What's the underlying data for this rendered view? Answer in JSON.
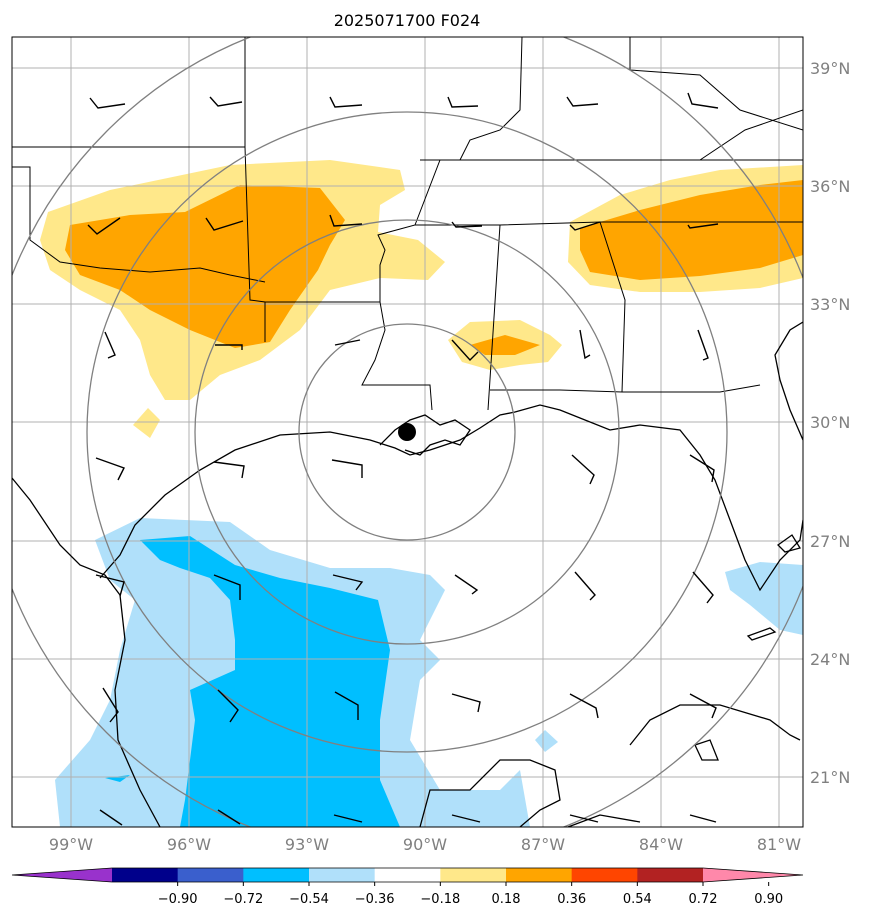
{
  "title": "2025071700 F024",
  "map": {
    "lon_range": [
      -101,
      -80.2
    ],
    "lat_range": [
      19.7,
      39.8
    ],
    "lon_ticks": [
      {
        "value": -99,
        "label": "99°W"
      },
      {
        "value": -96,
        "label": "96°W"
      },
      {
        "value": -93,
        "label": "93°W"
      },
      {
        "value": -90,
        "label": "90°W"
      },
      {
        "value": -87,
        "label": "87°W"
      },
      {
        "value": -84,
        "label": "84°W"
      },
      {
        "value": -81,
        "label": "81°W"
      }
    ],
    "lat_ticks": [
      {
        "value": 21,
        "label": "21°N"
      },
      {
        "value": 24,
        "label": "24°N"
      },
      {
        "value": 27,
        "label": "27°N"
      },
      {
        "value": 30,
        "label": "30°N"
      },
      {
        "value": 33,
        "label": "33°N"
      },
      {
        "value": 36,
        "label": "36°N"
      },
      {
        "value": 39,
        "label": "39°N"
      }
    ],
    "grid": true,
    "center_marker": {
      "lon": -90.7,
      "lat": 29.75
    },
    "range_ring_count": 4
  },
  "colorbar": {
    "levels": [
      "−0.90",
      "−0.72",
      "−0.54",
      "−0.36",
      "−0.18",
      "0.18",
      "0.36",
      "0.54",
      "0.72",
      "0.90"
    ],
    "colors": [
      "#9932cc",
      "#00008b",
      "#3a5fcd",
      "#00bfff",
      "#b0e0fa",
      "#ffffff",
      "#ffe88a",
      "#ffa500",
      "#ff4500",
      "#b22222",
      "#ff88aa"
    ],
    "extend": "both"
  },
  "colors": {
    "grid": "#b0b0b0",
    "ring": "#808080",
    "coast": "#000000",
    "tick_label": "#808080"
  }
}
